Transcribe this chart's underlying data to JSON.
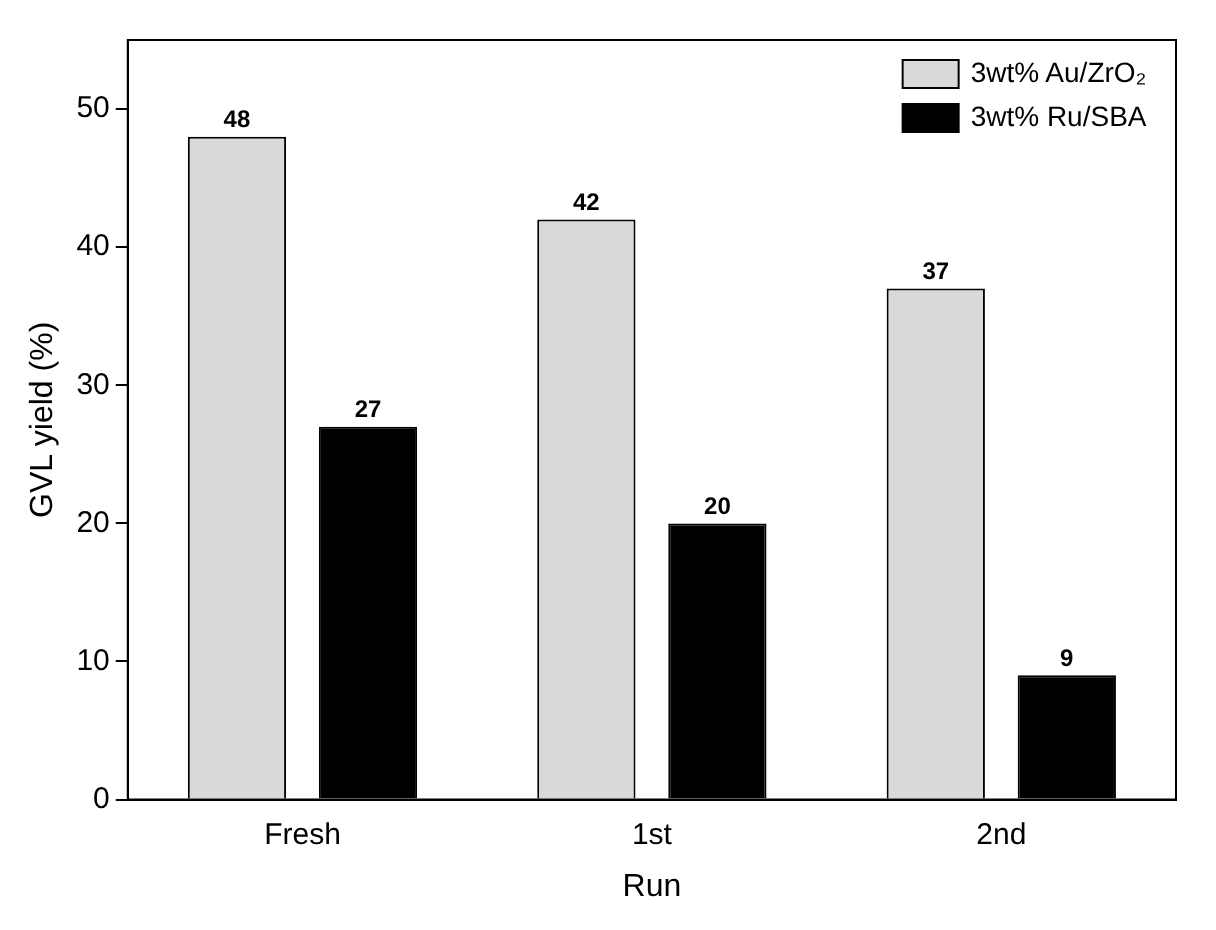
{
  "chart_data": {
    "type": "bar",
    "xlabel": "Run",
    "ylabel": "GVL yield (%)",
    "categories": [
      "Fresh",
      "1st",
      "2nd"
    ],
    "series": [
      {
        "name": "3wt% Au/ZrO₂",
        "color": "#d9d9d9",
        "values": [
          48,
          42,
          37
        ]
      },
      {
        "name": "3wt% Ru/SBA",
        "color": "#000000",
        "values": [
          27,
          20,
          9
        ]
      }
    ],
    "ylim": [
      0,
      55
    ],
    "yticks": [
      0,
      10,
      20,
      30,
      40,
      50
    ],
    "grid": false,
    "legend": "top right",
    "data_labels": true
  }
}
